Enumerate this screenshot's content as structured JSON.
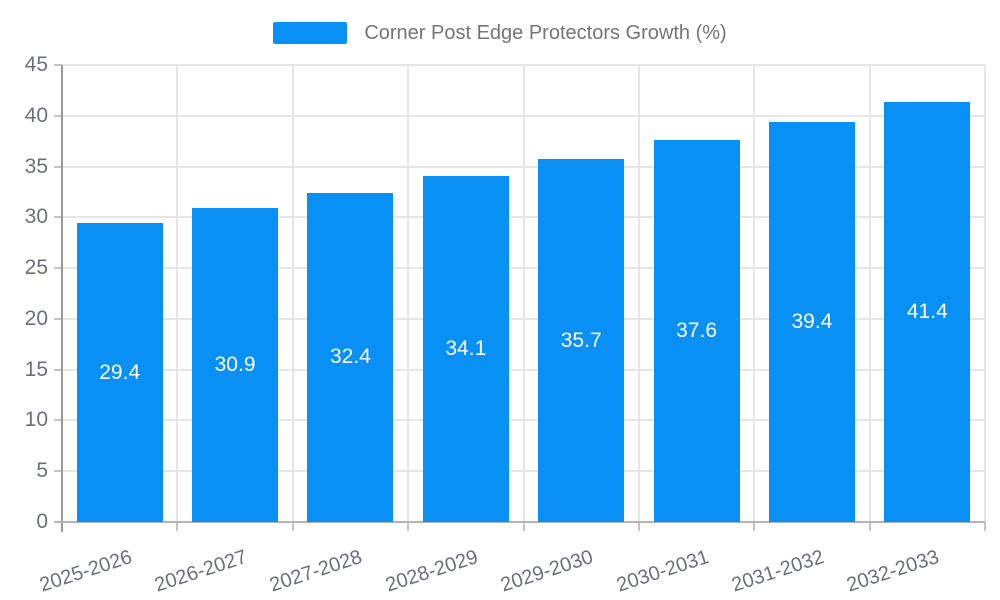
{
  "legend": {
    "label": "Corner Post Edge Protectors Growth (%)"
  },
  "colors": {
    "bar": "#0890f5",
    "grid": "#e6e6e6",
    "axis_line_y": "#9a9a9a",
    "axis_line_x": "#b4b4b4",
    "tick": "#c4c4c4",
    "axis_label_text": "#6e7079",
    "legend_text": "#757575",
    "bar_value_text": "#ffffff",
    "background": "#ffffff"
  },
  "chart_data": {
    "type": "bar",
    "title": "Corner Post Edge Protectors Growth (%)",
    "categories": [
      "2025-2026",
      "2026-2027",
      "2027-2028",
      "2028-2029",
      "2029-2030",
      "2030-2031",
      "2031-2032",
      "2032-2033"
    ],
    "values": [
      29.4,
      30.9,
      32.4,
      34.1,
      35.7,
      37.6,
      39.4,
      41.4
    ],
    "series_name": "Corner Post Edge Protectors Growth (%)",
    "xlabel": "",
    "ylabel": "",
    "ylim": [
      0,
      45
    ],
    "ytick_step": 5,
    "yticks": [
      0,
      5,
      10,
      15,
      20,
      25,
      30,
      35,
      40,
      45
    ],
    "grid": true,
    "legend_position": "top",
    "value_labels": "inside-center",
    "x_label_rotation_deg": -18
  }
}
